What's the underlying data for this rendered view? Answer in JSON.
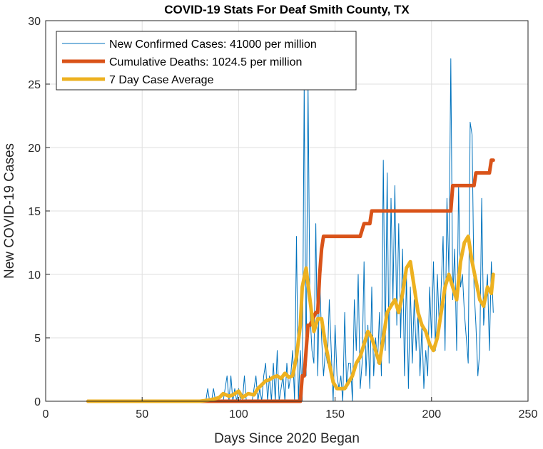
{
  "chart_data": {
    "type": "line",
    "title": "COVID-19 Stats For Deaf Smith County, TX",
    "xlabel": "Days Since 2020 Began",
    "ylabel": "New COVID-19 Cases",
    "xlim": [
      0,
      250
    ],
    "ylim": [
      0,
      30
    ],
    "xticks": [
      "0",
      "50",
      "100",
      "150",
      "200",
      "250"
    ],
    "yticks": [
      "0",
      "5",
      "10",
      "15",
      "20",
      "25",
      "30"
    ],
    "grid": true,
    "legend_position": "top-left",
    "series": [
      {
        "name": "New Confirmed Cases: 41000 per million",
        "color": "#0072bd",
        "x": [
          22,
          23,
          24,
          25,
          26,
          27,
          28,
          29,
          30,
          31,
          32,
          33,
          34,
          35,
          36,
          37,
          38,
          39,
          40,
          41,
          42,
          43,
          44,
          45,
          46,
          47,
          48,
          49,
          50,
          51,
          52,
          53,
          54,
          55,
          56,
          57,
          58,
          59,
          60,
          61,
          62,
          63,
          64,
          65,
          66,
          67,
          68,
          69,
          70,
          71,
          72,
          73,
          74,
          75,
          76,
          77,
          78,
          79,
          80,
          81,
          82,
          83,
          84,
          85,
          86,
          87,
          88,
          89,
          90,
          91,
          92,
          93,
          94,
          95,
          96,
          97,
          98,
          99,
          100,
          101,
          102,
          103,
          104,
          105,
          106,
          107,
          108,
          109,
          110,
          111,
          112,
          113,
          114,
          115,
          116,
          117,
          118,
          119,
          120,
          121,
          122,
          123,
          124,
          125,
          126,
          127,
          128,
          129,
          130,
          131,
          132,
          133,
          134,
          135,
          136,
          137,
          138,
          139,
          140,
          141,
          142,
          143,
          144,
          145,
          146,
          147,
          148,
          149,
          150,
          151,
          152,
          153,
          154,
          155,
          156,
          157,
          158,
          159,
          160,
          161,
          162,
          163,
          164,
          165,
          166,
          167,
          168,
          169,
          170,
          171,
          172,
          173,
          174,
          175,
          176,
          177,
          178,
          179,
          180,
          181,
          182,
          183,
          184,
          185,
          186,
          187,
          188,
          189,
          190,
          191,
          192,
          193,
          194,
          195,
          196,
          197,
          198,
          199,
          200,
          201,
          202,
          203,
          204,
          205,
          206,
          207,
          208,
          209,
          210,
          211,
          212,
          213,
          214,
          215,
          216,
          217,
          218,
          219,
          220,
          221,
          222,
          223,
          224,
          225,
          226,
          227,
          228,
          229,
          230,
          231,
          232
        ],
        "y": [
          0,
          0,
          0,
          0,
          0,
          0,
          0,
          0,
          0,
          0,
          0,
          0,
          0,
          0,
          0,
          0,
          0,
          0,
          0,
          0,
          0,
          0,
          0,
          0,
          0,
          0,
          0,
          0,
          0,
          0,
          0,
          0,
          0,
          0,
          0,
          0,
          0,
          0,
          0,
          0,
          0,
          0,
          0,
          0,
          0,
          0,
          0,
          0,
          0,
          0,
          0,
          0,
          0,
          0,
          0,
          0,
          0,
          0,
          0,
          0,
          0,
          0,
          1,
          0,
          0,
          1,
          0,
          0,
          0,
          0,
          0,
          1,
          2,
          0,
          2,
          0,
          1,
          0,
          1,
          0,
          0,
          2,
          0,
          0,
          0,
          0,
          1,
          2,
          0,
          1,
          0,
          2,
          3,
          0,
          2,
          0,
          3,
          0,
          4,
          0,
          1,
          2,
          0,
          3,
          1,
          2,
          4,
          0,
          13,
          0,
          4,
          0,
          25,
          2,
          25,
          7,
          4,
          3,
          14,
          2,
          10,
          5,
          2,
          4,
          3,
          8,
          4,
          0,
          6,
          2,
          1,
          2,
          0,
          7,
          1,
          3,
          3,
          0,
          8,
          4,
          10,
          1,
          3,
          11,
          2,
          6,
          1,
          9,
          2,
          5,
          3,
          7,
          2,
          19,
          4,
          18,
          3,
          16,
          8,
          17,
          6,
          14,
          5,
          12,
          2,
          10,
          1,
          9,
          3,
          8,
          4,
          7,
          2,
          6,
          1,
          4,
          2,
          9,
          5,
          11,
          4,
          10,
          6,
          9,
          13,
          4,
          16,
          10,
          27,
          8,
          12,
          4,
          17,
          9,
          10,
          7,
          5,
          3,
          22,
          21,
          9,
          6,
          2,
          4,
          16,
          6,
          8,
          10,
          4,
          11,
          7
        ],
        "line_width": 1
      },
      {
        "name": "Cumulative Deaths: 1024.5 per million",
        "color": "#d95319",
        "x": [
          22,
          132,
          133,
          134,
          136,
          137,
          140,
          141,
          142,
          143,
          144,
          145,
          152,
          153,
          159,
          160,
          162,
          163,
          165,
          166,
          167,
          168,
          169,
          170,
          190,
          195,
          210,
          211,
          222,
          223,
          230,
          231,
          232
        ],
        "y": [
          0,
          0,
          2,
          2,
          6,
          6,
          7,
          7,
          10,
          12,
          13,
          13,
          13,
          13,
          13,
          13,
          13,
          13,
          14,
          14,
          14,
          14,
          15,
          15,
          15,
          15,
          15,
          17,
          17,
          18,
          18,
          19,
          19
        ],
        "line_width": 5
      },
      {
        "name": "7 Day Case Average",
        "color": "#edb120",
        "x": [
          22,
          80,
          85,
          88,
          90,
          92,
          95,
          97,
          100,
          102,
          105,
          108,
          110,
          112,
          114,
          116,
          118,
          120,
          122,
          124,
          126,
          128,
          130,
          132,
          133,
          135,
          137,
          139,
          141,
          143,
          145,
          147,
          149,
          151,
          153,
          155,
          157,
          159,
          161,
          163,
          165,
          167,
          169,
          171,
          173,
          175,
          177,
          179,
          181,
          183,
          185,
          187,
          189,
          191,
          193,
          195,
          197,
          199,
          201,
          203,
          205,
          207,
          209,
          211,
          213,
          215,
          217,
          219,
          221,
          223,
          225,
          227,
          229,
          231,
          232
        ],
        "y": [
          0,
          0,
          0.1,
          0.2,
          0.3,
          0.6,
          0.4,
          0.5,
          0.8,
          0.3,
          0.6,
          0.5,
          1.0,
          1.3,
          1.6,
          1.7,
          1.9,
          2.0,
          1.8,
          2.2,
          1.9,
          2.0,
          3.5,
          6.0,
          9.0,
          10.5,
          8.0,
          5.5,
          6.5,
          6.5,
          4.5,
          3.0,
          1.5,
          1.0,
          1.0,
          1.0,
          1.5,
          2.0,
          3.0,
          3.5,
          4.5,
          5.5,
          5.0,
          4.0,
          3.0,
          5.0,
          7.0,
          7.5,
          8.0,
          7.0,
          8.5,
          10.5,
          11.0,
          9.0,
          7.0,
          6.0,
          5.5,
          4.5,
          4.0,
          5.0,
          7.0,
          9.0,
          10.0,
          9.0,
          8.0,
          11.0,
          12.5,
          13.0,
          11.0,
          9.5,
          8.0,
          7.5,
          9.0,
          8.5,
          10.0
        ]
      }
    ]
  }
}
